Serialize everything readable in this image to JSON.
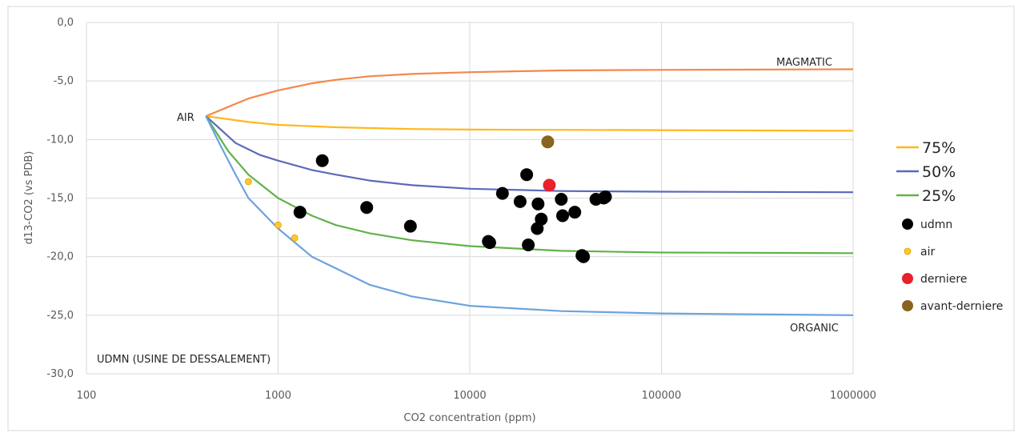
{
  "chart_data": {
    "type": "scatter",
    "x_scale": "log",
    "xlabel": "CO2 concentration (ppm)",
    "ylabel": "d13-CO2 (vs PDB)",
    "xlim": [
      100,
      1000000
    ],
    "ylim": [
      -30,
      0
    ],
    "x_ticks": [
      "100",
      "1000",
      "10000",
      "100000",
      "1000000"
    ],
    "y_ticks": [
      "0,0",
      "-5,0",
      "-10,0",
      "-15,0",
      "-20,0",
      "-25,0",
      "-30,0"
    ],
    "grid": true,
    "legend_position": "right",
    "annotations": {
      "air": "AIR",
      "magmatic": "MAGMATIC",
      "organic": "ORGANIC",
      "site": "UDMN (USINE DE DESSALEMENT)"
    },
    "lines": [
      {
        "key": "magmatic",
        "color": "#F4874B",
        "in_legend": false,
        "points": [
          [
            420,
            -8
          ],
          [
            700,
            -6.5
          ],
          [
            1000,
            -5.8
          ],
          [
            1500,
            -5.2
          ],
          [
            2000,
            -4.9
          ],
          [
            3000,
            -4.6
          ],
          [
            5000,
            -4.4
          ],
          [
            10000,
            -4.25
          ],
          [
            30000,
            -4.1
          ],
          [
            100000,
            -4.05
          ],
          [
            1000000,
            -4.0
          ]
        ]
      },
      {
        "key": "75%",
        "name": "75%",
        "color": "#FFB81C",
        "in_legend": true,
        "points": [
          [
            420,
            -8
          ],
          [
            700,
            -8.5
          ],
          [
            1000,
            -8.75
          ],
          [
            2000,
            -8.95
          ],
          [
            5000,
            -9.1
          ],
          [
            10000,
            -9.15
          ],
          [
            100000,
            -9.2
          ],
          [
            1000000,
            -9.25
          ]
        ]
      },
      {
        "key": "50%",
        "name": "50%",
        "color": "#5B6AB9",
        "in_legend": true,
        "points": [
          [
            420,
            -8
          ],
          [
            600,
            -10.3
          ],
          [
            800,
            -11.3
          ],
          [
            1000,
            -11.8
          ],
          [
            1500,
            -12.6
          ],
          [
            2000,
            -13.0
          ],
          [
            3000,
            -13.5
          ],
          [
            5000,
            -13.9
          ],
          [
            10000,
            -14.2
          ],
          [
            30000,
            -14.4
          ],
          [
            100000,
            -14.45
          ],
          [
            1000000,
            -14.5
          ]
        ]
      },
      {
        "key": "25%",
        "name": "25%",
        "color": "#62B24B",
        "in_legend": true,
        "points": [
          [
            420,
            -8
          ],
          [
            550,
            -11
          ],
          [
            700,
            -13
          ],
          [
            1000,
            -15
          ],
          [
            1500,
            -16.5
          ],
          [
            2000,
            -17.3
          ],
          [
            3000,
            -18.0
          ],
          [
            5000,
            -18.6
          ],
          [
            10000,
            -19.1
          ],
          [
            30000,
            -19.5
          ],
          [
            100000,
            -19.65
          ],
          [
            1000000,
            -19.7
          ]
        ]
      },
      {
        "key": "organic",
        "color": "#6CA3DD",
        "in_legend": false,
        "points": [
          [
            420,
            -8
          ],
          [
            500,
            -10.5
          ],
          [
            600,
            -13
          ],
          [
            700,
            -15
          ],
          [
            1000,
            -17.6
          ],
          [
            1500,
            -20
          ],
          [
            2000,
            -21
          ],
          [
            3000,
            -22.4
          ],
          [
            5000,
            -23.4
          ],
          [
            10000,
            -24.2
          ],
          [
            30000,
            -24.65
          ],
          [
            100000,
            -24.85
          ],
          [
            1000000,
            -25.0
          ]
        ]
      }
    ],
    "series": [
      {
        "name": "udmn",
        "color": "#000000",
        "marker_size": 8,
        "points": [
          [
            1700,
            -11.8
          ],
          [
            1300,
            -16.2
          ],
          [
            2900,
            -15.8
          ],
          [
            4900,
            -17.4
          ],
          [
            12500,
            -18.7
          ],
          [
            12700,
            -18.8
          ],
          [
            14800,
            -14.6
          ],
          [
            18300,
            -15.3
          ],
          [
            19800,
            -13.0
          ],
          [
            20200,
            -19.0
          ],
          [
            22700,
            -15.5
          ],
          [
            22500,
            -17.6
          ],
          [
            23600,
            -16.8
          ],
          [
            30000,
            -15.1
          ],
          [
            30500,
            -16.5
          ],
          [
            35300,
            -16.2
          ],
          [
            38500,
            -19.9
          ],
          [
            39200,
            -20.0
          ],
          [
            45500,
            -15.1
          ],
          [
            50000,
            -15.0
          ],
          [
            51000,
            -14.9
          ]
        ]
      },
      {
        "name": "air",
        "color": "#FFC72C",
        "marker_size": 4,
        "points": [
          [
            700,
            -13.6
          ],
          [
            1000,
            -17.3
          ],
          [
            1220,
            -18.4
          ]
        ]
      },
      {
        "name": "derniere",
        "color": "#E8212A",
        "marker_size": 8,
        "points": [
          [
            26000,
            -13.9
          ]
        ]
      },
      {
        "name": "avant-derniere",
        "color": "#8B6320",
        "marker_size": 8,
        "points": [
          [
            25500,
            -10.2
          ]
        ]
      }
    ]
  }
}
